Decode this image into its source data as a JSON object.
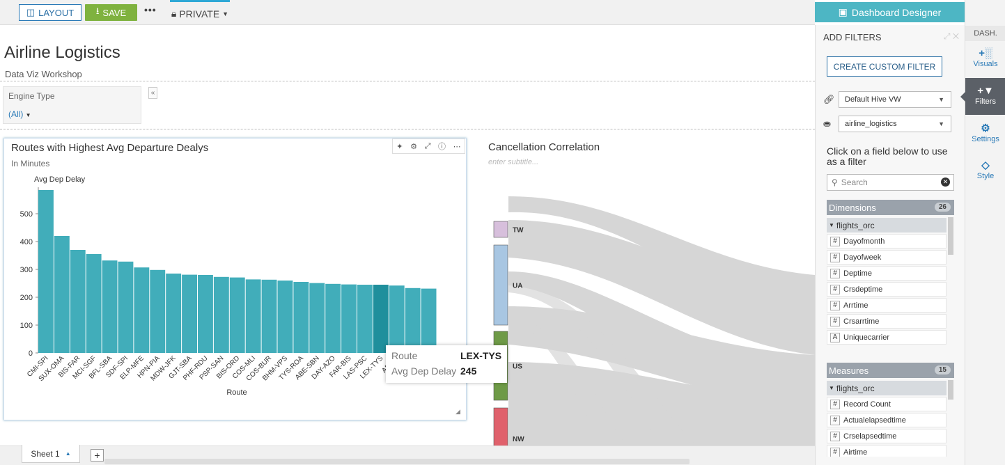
{
  "toolbar": {
    "layout_label": "LAYOUT",
    "save_label": "SAVE",
    "more_label": "•••",
    "privacy_label": "PRIVATE"
  },
  "dashboard": {
    "title": "Airline Logistics",
    "subtitle": "Data Viz Workshop"
  },
  "filter": {
    "label": "Engine Type",
    "value": "(All)"
  },
  "visual1": {
    "title": "Routes with Highest Avg Departure Dealys",
    "subtitle": "In Minutes"
  },
  "visual2": {
    "title": "Cancellation Correlation",
    "subtitle": "enter subtitle..."
  },
  "tooltip": {
    "route_label": "Route",
    "route_value": "LEX-TYS",
    "delay_label": "Avg Dep Delay",
    "delay_value": "245"
  },
  "chart_data": {
    "type": "bar",
    "title": "",
    "ylabel": "Avg Dep Delay",
    "xlabel": "Route",
    "ylim": [
      0,
      590
    ],
    "yticks": [
      0,
      100,
      200,
      300,
      400,
      500
    ],
    "categories": [
      "CMI-SPI",
      "SUX-OMA",
      "BIS-FAR",
      "MCI-SGF",
      "BFL-SBA",
      "SDF-SPI",
      "ELP-MFE",
      "HPN-PIA",
      "MDW-JFK",
      "GJT-SBA",
      "PHF-RDU",
      "PSP-SAN",
      "BIS-ORD",
      "COS-MLI",
      "COS-BUR",
      "BHM-VPS",
      "TYS-ROA",
      "ABE-SBN",
      "DAY-AZO",
      "FAR-BIS",
      "LAS-PSC",
      "LEX-TYS",
      "ABE-A",
      "",
      ""
    ],
    "values": [
      585,
      420,
      370,
      355,
      332,
      328,
      307,
      298,
      285,
      281,
      280,
      273,
      271,
      264,
      263,
      260,
      255,
      251,
      248,
      246,
      245,
      245,
      242,
      233,
      231
    ],
    "bar_color": "#41adba",
    "highlight_index": 21,
    "highlight_color": "#1f8f9c"
  },
  "sankey": {
    "nodes": [
      {
        "label": "TW",
        "color": "#d7bfdc"
      },
      {
        "label": "UA",
        "color": "#a8c6e2"
      },
      {
        "label": "US",
        "color": "#6e9a47"
      },
      {
        "label": "NW",
        "color": "#e0616c"
      }
    ]
  },
  "sheets": {
    "tab_label": "Sheet 1",
    "add_label": "+"
  },
  "designer": {
    "header": "Dashboard Designer"
  },
  "side_nav": {
    "head": "DASH.",
    "items": [
      {
        "label": "Visuals"
      },
      {
        "label": "Filters"
      },
      {
        "label": "Settings"
      },
      {
        "label": "Style"
      }
    ]
  },
  "filters_panel": {
    "heading": "ADD FILTERS",
    "custom_button": "CREATE CUSTOM FILTER",
    "connection": "Default Hive VW",
    "dataset": "airline_logistics",
    "hint": "Click on a field below to use as a filter",
    "search_placeholder": "Search",
    "dimensions": {
      "label": "Dimensions",
      "count": "26",
      "group": "flights_orc",
      "fields": [
        {
          "type": "#",
          "name": "Dayofmonth"
        },
        {
          "type": "#",
          "name": "Dayofweek"
        },
        {
          "type": "#",
          "name": "Deptime"
        },
        {
          "type": "#",
          "name": "Crsdeptime"
        },
        {
          "type": "#",
          "name": "Arrtime"
        },
        {
          "type": "#",
          "name": "Crsarrtime"
        },
        {
          "type": "A",
          "name": "Uniquecarrier"
        }
      ]
    },
    "measures": {
      "label": "Measures",
      "count": "15",
      "group": "flights_orc",
      "fields": [
        {
          "type": "#",
          "name": "Record Count"
        },
        {
          "type": "#",
          "name": "Actualelapsedtime"
        },
        {
          "type": "#",
          "name": "Crselapsedtime"
        },
        {
          "type": "#",
          "name": "Airtime"
        }
      ]
    }
  }
}
